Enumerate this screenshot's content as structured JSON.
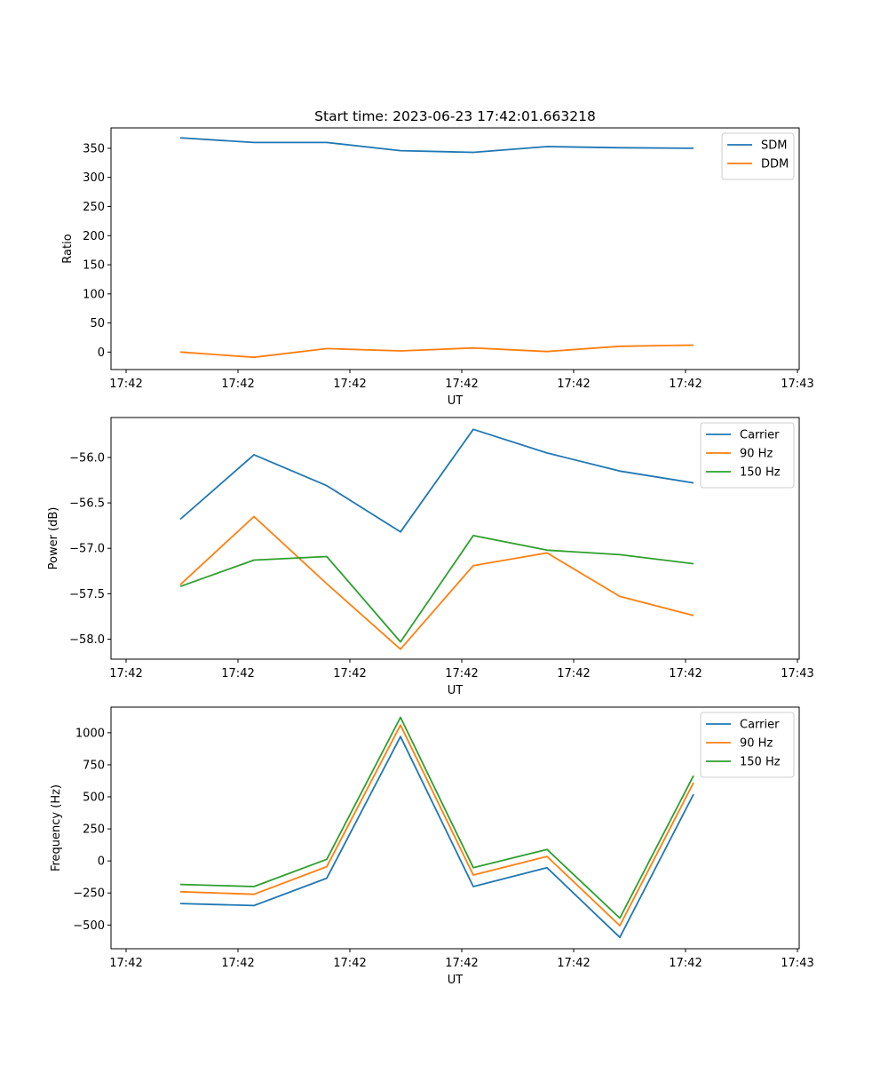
{
  "title": "Start time: 2023-06-23 17:42:01.663218",
  "chart_data": [
    {
      "type": "line",
      "xlabel": "UT",
      "ylabel": "Ratio",
      "x_tick_labels": [
        "17:42",
        "17:42",
        "17:42",
        "17:42",
        "17:42",
        "17:42",
        "17:43"
      ],
      "yticks": [
        0,
        50,
        100,
        150,
        200,
        250,
        300,
        350
      ],
      "ylim": [
        -30,
        385
      ],
      "legend_position": "upper right",
      "grid": false,
      "series": [
        {
          "name": "SDM",
          "color": "#1f77b4",
          "values": [
            368,
            360,
            360,
            346,
            343,
            353,
            351,
            350
          ]
        },
        {
          "name": "DDM",
          "color": "#ff7f0e",
          "values": [
            0,
            -9,
            6,
            2,
            7,
            1,
            10,
            12
          ]
        }
      ]
    },
    {
      "type": "line",
      "xlabel": "UT",
      "ylabel": "Power (dB)",
      "x_tick_labels": [
        "17:42",
        "17:42",
        "17:42",
        "17:42",
        "17:42",
        "17:42",
        "17:43"
      ],
      "yticks": [
        -58.0,
        -57.5,
        -57.0,
        -56.5,
        -56.0
      ],
      "ytick_labels": [
        "−58.0",
        "−57.5",
        "−57.0",
        "−56.5",
        "−56.0"
      ],
      "ylim": [
        -58.22,
        -55.56
      ],
      "legend_position": "upper right",
      "grid": false,
      "series": [
        {
          "name": "Carrier",
          "color": "#1f77b4",
          "values": [
            -56.68,
            -55.97,
            -56.31,
            -56.82,
            -55.69,
            -55.95,
            -56.15,
            -56.28
          ]
        },
        {
          "name": "90 Hz",
          "color": "#ff7f0e",
          "values": [
            -57.4,
            -56.65,
            -57.39,
            -58.11,
            -57.19,
            -57.05,
            -57.53,
            -57.74
          ]
        },
        {
          "name": "150 Hz",
          "color": "#2ca02c",
          "values": [
            -57.42,
            -57.13,
            -57.09,
            -58.03,
            -56.86,
            -57.02,
            -57.07,
            -57.17
          ]
        }
      ]
    },
    {
      "type": "line",
      "xlabel": "UT",
      "ylabel": "Frequency (Hz)",
      "x_tick_labels": [
        "17:42",
        "17:42",
        "17:42",
        "17:42",
        "17:42",
        "17:42",
        "17:43"
      ],
      "yticks": [
        -500,
        -250,
        0,
        250,
        500,
        750,
        1000
      ],
      "ytick_labels": [
        "−500",
        "−250",
        "0",
        "250",
        "500",
        "750",
        "1000"
      ],
      "ylim": [
        -685,
        1200
      ],
      "legend_position": "upper right",
      "grid": false,
      "series": [
        {
          "name": "Carrier",
          "color": "#1f77b4",
          "values": [
            -332,
            -348,
            -135,
            970,
            -200,
            -53,
            -596,
            520
          ]
        },
        {
          "name": "90 Hz",
          "color": "#ff7f0e",
          "values": [
            -240,
            -260,
            -45,
            1060,
            -110,
            35,
            -505,
            610
          ]
        },
        {
          "name": "150 Hz",
          "color": "#2ca02c",
          "values": [
            -183,
            -200,
            13,
            1120,
            -52,
            90,
            -446,
            665
          ]
        }
      ]
    }
  ]
}
